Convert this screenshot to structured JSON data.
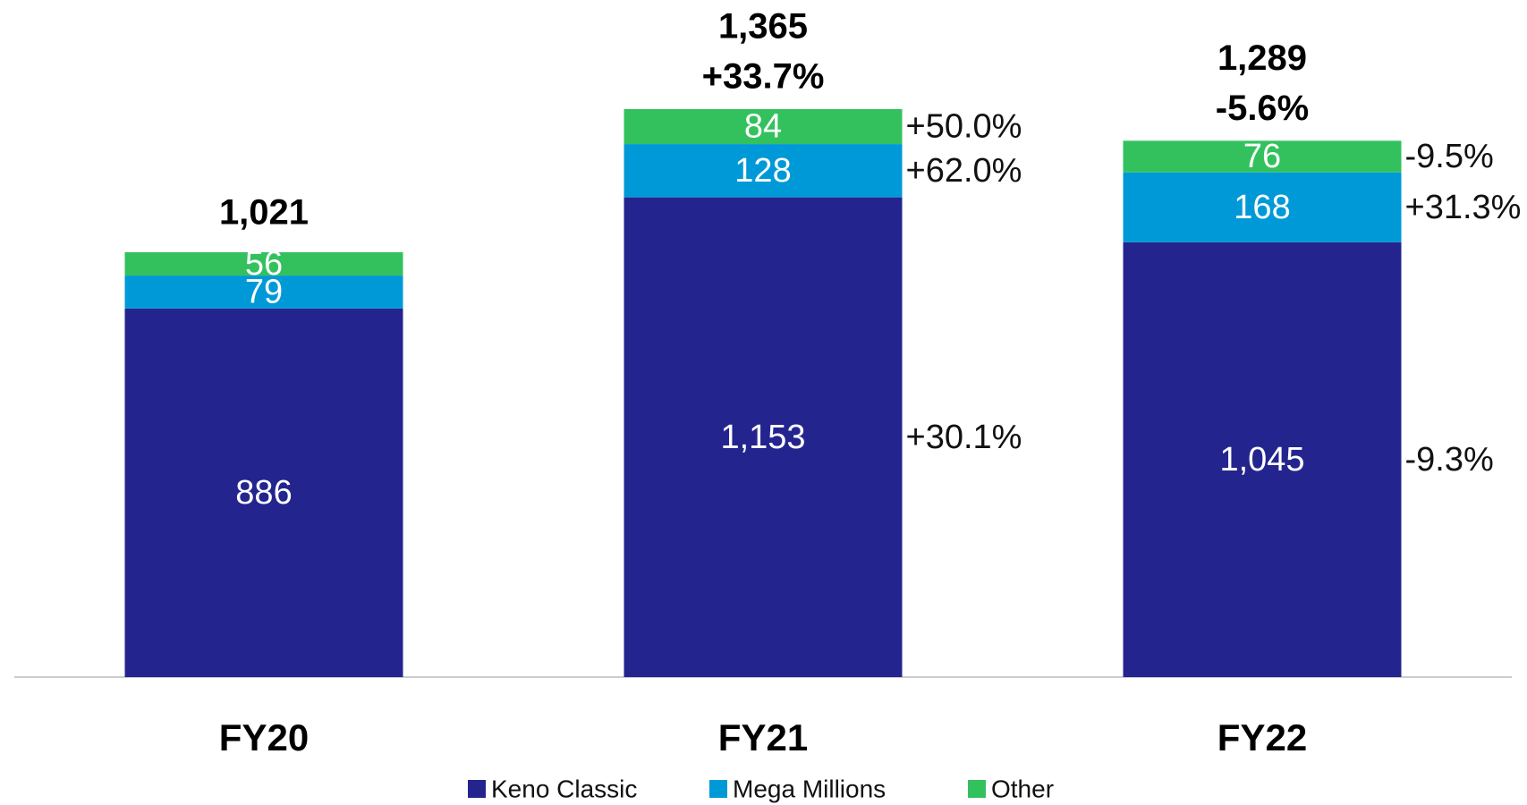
{
  "chart_data": {
    "type": "stacked_bar",
    "categories": [
      "FY20",
      "FY21",
      "FY22"
    ],
    "series": [
      {
        "name": "Keno Classic",
        "color": "#24248f",
        "values": [
          886,
          1153,
          1045
        ],
        "value_labels": [
          "886",
          "1,153",
          "1,045"
        ],
        "change_labels": [
          null,
          "+30.1%",
          "-9.3%"
        ]
      },
      {
        "name": "Mega Millions",
        "color": "#0099d8",
        "values": [
          79,
          128,
          168
        ],
        "change_labels": [
          null,
          "+62.0%",
          "+31.3%"
        ]
      },
      {
        "name": "Other",
        "color": "#33c15e",
        "values": [
          56,
          84,
          76
        ],
        "change_labels": [
          null,
          "+50.0%",
          "-9.5%"
        ]
      }
    ],
    "totals": [
      1021,
      1365,
      1289
    ],
    "total_labels": [
      "1,021",
      "1,365",
      "1,289"
    ],
    "total_change_labels": [
      null,
      "+33.7%",
      "-5.6%"
    ]
  }
}
